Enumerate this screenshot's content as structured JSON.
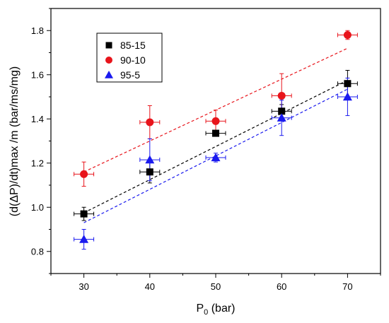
{
  "chart_data": {
    "type": "scatter",
    "xlabel": {
      "main": "P",
      "sub": "0",
      "unit": " (bar)"
    },
    "ylabel": "(d(ΔP)/dt)max /m (bar/ms/mg)",
    "xlim": [
      25,
      75
    ],
    "ylim": [
      0.7,
      1.9
    ],
    "xticks": [
      30,
      40,
      50,
      60,
      70
    ],
    "yticks": [
      0.8,
      1.0,
      1.2,
      1.4,
      1.6,
      1.8
    ],
    "ytick_labels": [
      "0.8",
      "1.0",
      "1.2",
      "1.4",
      "1.6",
      "1.8"
    ],
    "x_error": 1.5,
    "legend_position": "top-left",
    "grid": false,
    "series": [
      {
        "name": "85-15",
        "marker": "square",
        "color": "#000000",
        "fit_color": "#000000",
        "x": [
          30,
          40,
          50,
          60,
          70
        ],
        "y": [
          0.97,
          1.16,
          1.335,
          1.435,
          1.56
        ],
        "y_error": [
          0.03,
          0.05,
          0.0,
          0.03,
          0.06
        ],
        "fit": {
          "x": [
            30,
            70
          ],
          "y": [
            0.975,
            1.575
          ]
        }
      },
      {
        "name": "90-10",
        "marker": "circle",
        "color": "#e8141b",
        "fit_color": "#e8141b",
        "x": [
          30,
          40,
          50,
          60,
          70
        ],
        "y": [
          1.15,
          1.385,
          1.39,
          1.505,
          1.78
        ],
        "y_error": [
          0.055,
          0.075,
          0.05,
          0.1,
          0.02
        ],
        "fit": {
          "x": [
            30,
            70
          ],
          "y": [
            1.16,
            1.72
          ]
        }
      },
      {
        "name": "95-5",
        "marker": "triangle",
        "color": "#1a1aef",
        "fit_color": "#1a1aef",
        "x": [
          30,
          40,
          50,
          60,
          70
        ],
        "y": [
          0.855,
          1.215,
          1.225,
          1.405,
          1.5
        ],
        "y_error": [
          0.045,
          0.095,
          0.02,
          0.08,
          0.085
        ],
        "fit": {
          "x": [
            30,
            70
          ],
          "y": [
            0.93,
            1.535
          ]
        }
      }
    ]
  }
}
